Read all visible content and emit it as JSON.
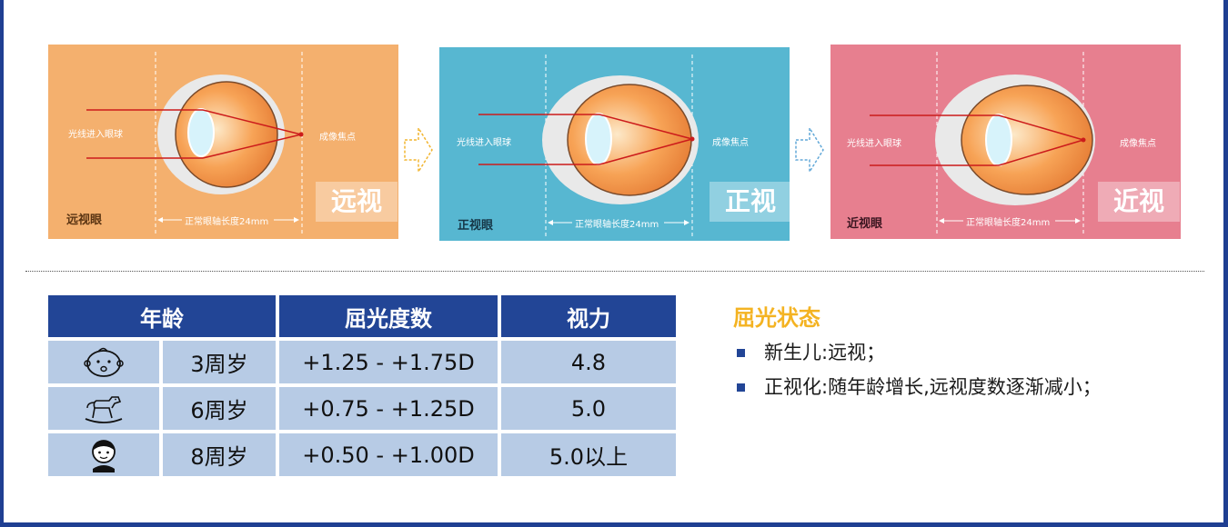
{
  "panels": [
    {
      "id": "hyperopia",
      "bg": "#f4b06e",
      "light_label": "光线进入眼球",
      "focus_label": "成像焦点",
      "axis_label": "正常眼轴长度24mm",
      "eye_type_label": "远视眼",
      "big_label": "远视"
    },
    {
      "id": "emmetropia",
      "bg": "#57b7d1",
      "light_label": "光线进入眼球",
      "focus_label": "成像焦点",
      "axis_label": "正常眼轴长度24mm",
      "eye_type_label": "正视眼",
      "big_label": "正视"
    },
    {
      "id": "myopia",
      "bg": "#e77f8f",
      "light_label": "光线进入眼球",
      "focus_label": "成像焦点",
      "axis_label": "正常眼轴长度24mm",
      "eye_type_label": "近视眼",
      "big_label": "近视"
    }
  ],
  "table": {
    "headers": [
      "年龄",
      "屈光度数",
      "视力"
    ],
    "rows": [
      {
        "icon": "baby-face-icon",
        "age": "3周岁",
        "refraction": "+1.25 - +1.75D",
        "vision": "4.8"
      },
      {
        "icon": "rocking-horse-icon",
        "age": "6周岁",
        "refraction": "+0.75 - +1.25D",
        "vision": "5.0"
      },
      {
        "icon": "child-face-icon",
        "age": "8周岁",
        "refraction": "+0.50 - +1.00D",
        "vision": "5.0以上"
      }
    ]
  },
  "status": {
    "title": "屈光状态",
    "items": [
      "新生儿:远视；",
      "正视化:随年龄增长,远视度数逐渐减小；"
    ]
  },
  "colors": {
    "frame": "#1f3f92",
    "table_header": "#224596",
    "table_cell": "#b7cbe5",
    "status_title": "#f4b322",
    "arrow_1": "#f2b531",
    "arrow_2": "#63a9d8"
  }
}
